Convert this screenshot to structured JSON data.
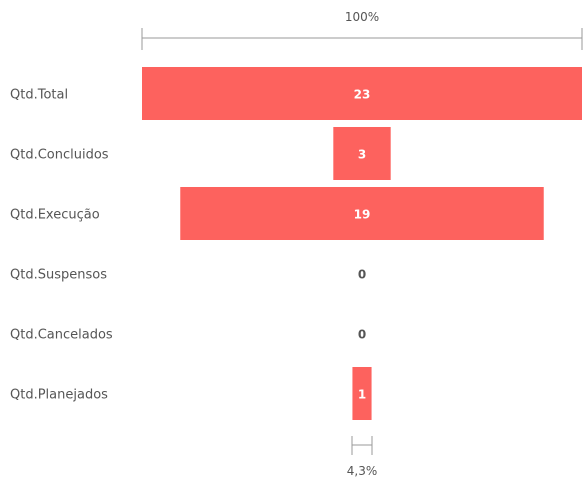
{
  "chart_data": {
    "type": "bar",
    "subtype": "funnel",
    "categories": [
      "Qtd.Total",
      "Qtd.Concluidos",
      "Qtd.Execução",
      "Qtd.Suspensos",
      "Qtd.Cancelados",
      "Qtd.Planejados"
    ],
    "values": [
      23,
      3,
      19,
      0,
      0,
      1
    ],
    "top_percent_label": "100%",
    "bottom_percent_label": "4,3%",
    "bar_color": "#fd625e",
    "inside_label_color": "#ffffff",
    "outside_label_color": "#555555",
    "category_label_color": "#555555"
  }
}
